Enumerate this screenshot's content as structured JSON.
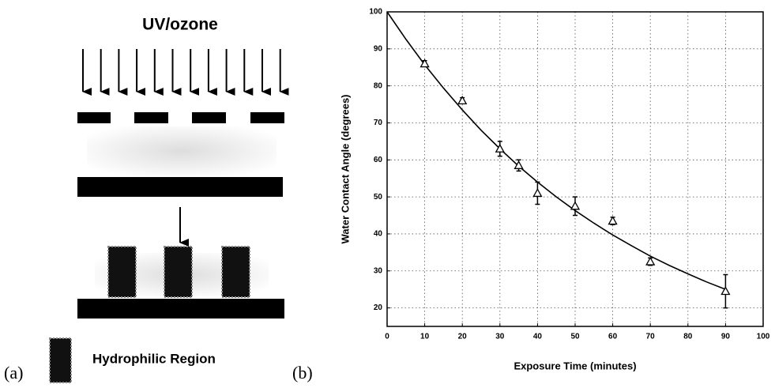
{
  "diagram": {
    "title": "UV/ozone",
    "legend_label": "Hydrophilic Region",
    "panel_labels": [
      "(a)",
      "(b)"
    ]
  },
  "chart_data": {
    "type": "scatter",
    "x_label": "Exposure Time (minutes)",
    "y_label": "Water Contact Angle (degrees)",
    "xlim": [
      0,
      100
    ],
    "xticks": [
      0,
      10,
      20,
      30,
      40,
      50,
      60,
      70,
      80,
      90,
      100
    ],
    "ylim": [
      15,
      100
    ],
    "yticks": [
      20,
      30,
      40,
      50,
      60,
      70,
      80,
      90,
      100
    ],
    "grid": true,
    "color": "#000000",
    "points": {
      "x": [
        10,
        20,
        30,
        35,
        40,
        50,
        60,
        70,
        90
      ],
      "values": [
        86,
        76,
        63,
        58.5,
        51,
        47.5,
        43.5,
        32.5,
        24.5
      ],
      "errors": [
        0.8,
        0.8,
        2,
        1.5,
        3,
        2.5,
        1,
        1,
        4.5
      ]
    },
    "fit": {
      "x": [
        0,
        5,
        10,
        15,
        20,
        25,
        30,
        35,
        40,
        45,
        50,
        55,
        60,
        65,
        70,
        75,
        80,
        85,
        90
      ],
      "values": [
        100,
        92.6,
        85.7,
        79.4,
        73.5,
        68.0,
        63.0,
        58.3,
        54.0,
        50.0,
        46.3,
        42.9,
        39.7,
        36.8,
        34.0,
        31.5,
        29.2,
        27.0,
        25.0
      ]
    }
  }
}
